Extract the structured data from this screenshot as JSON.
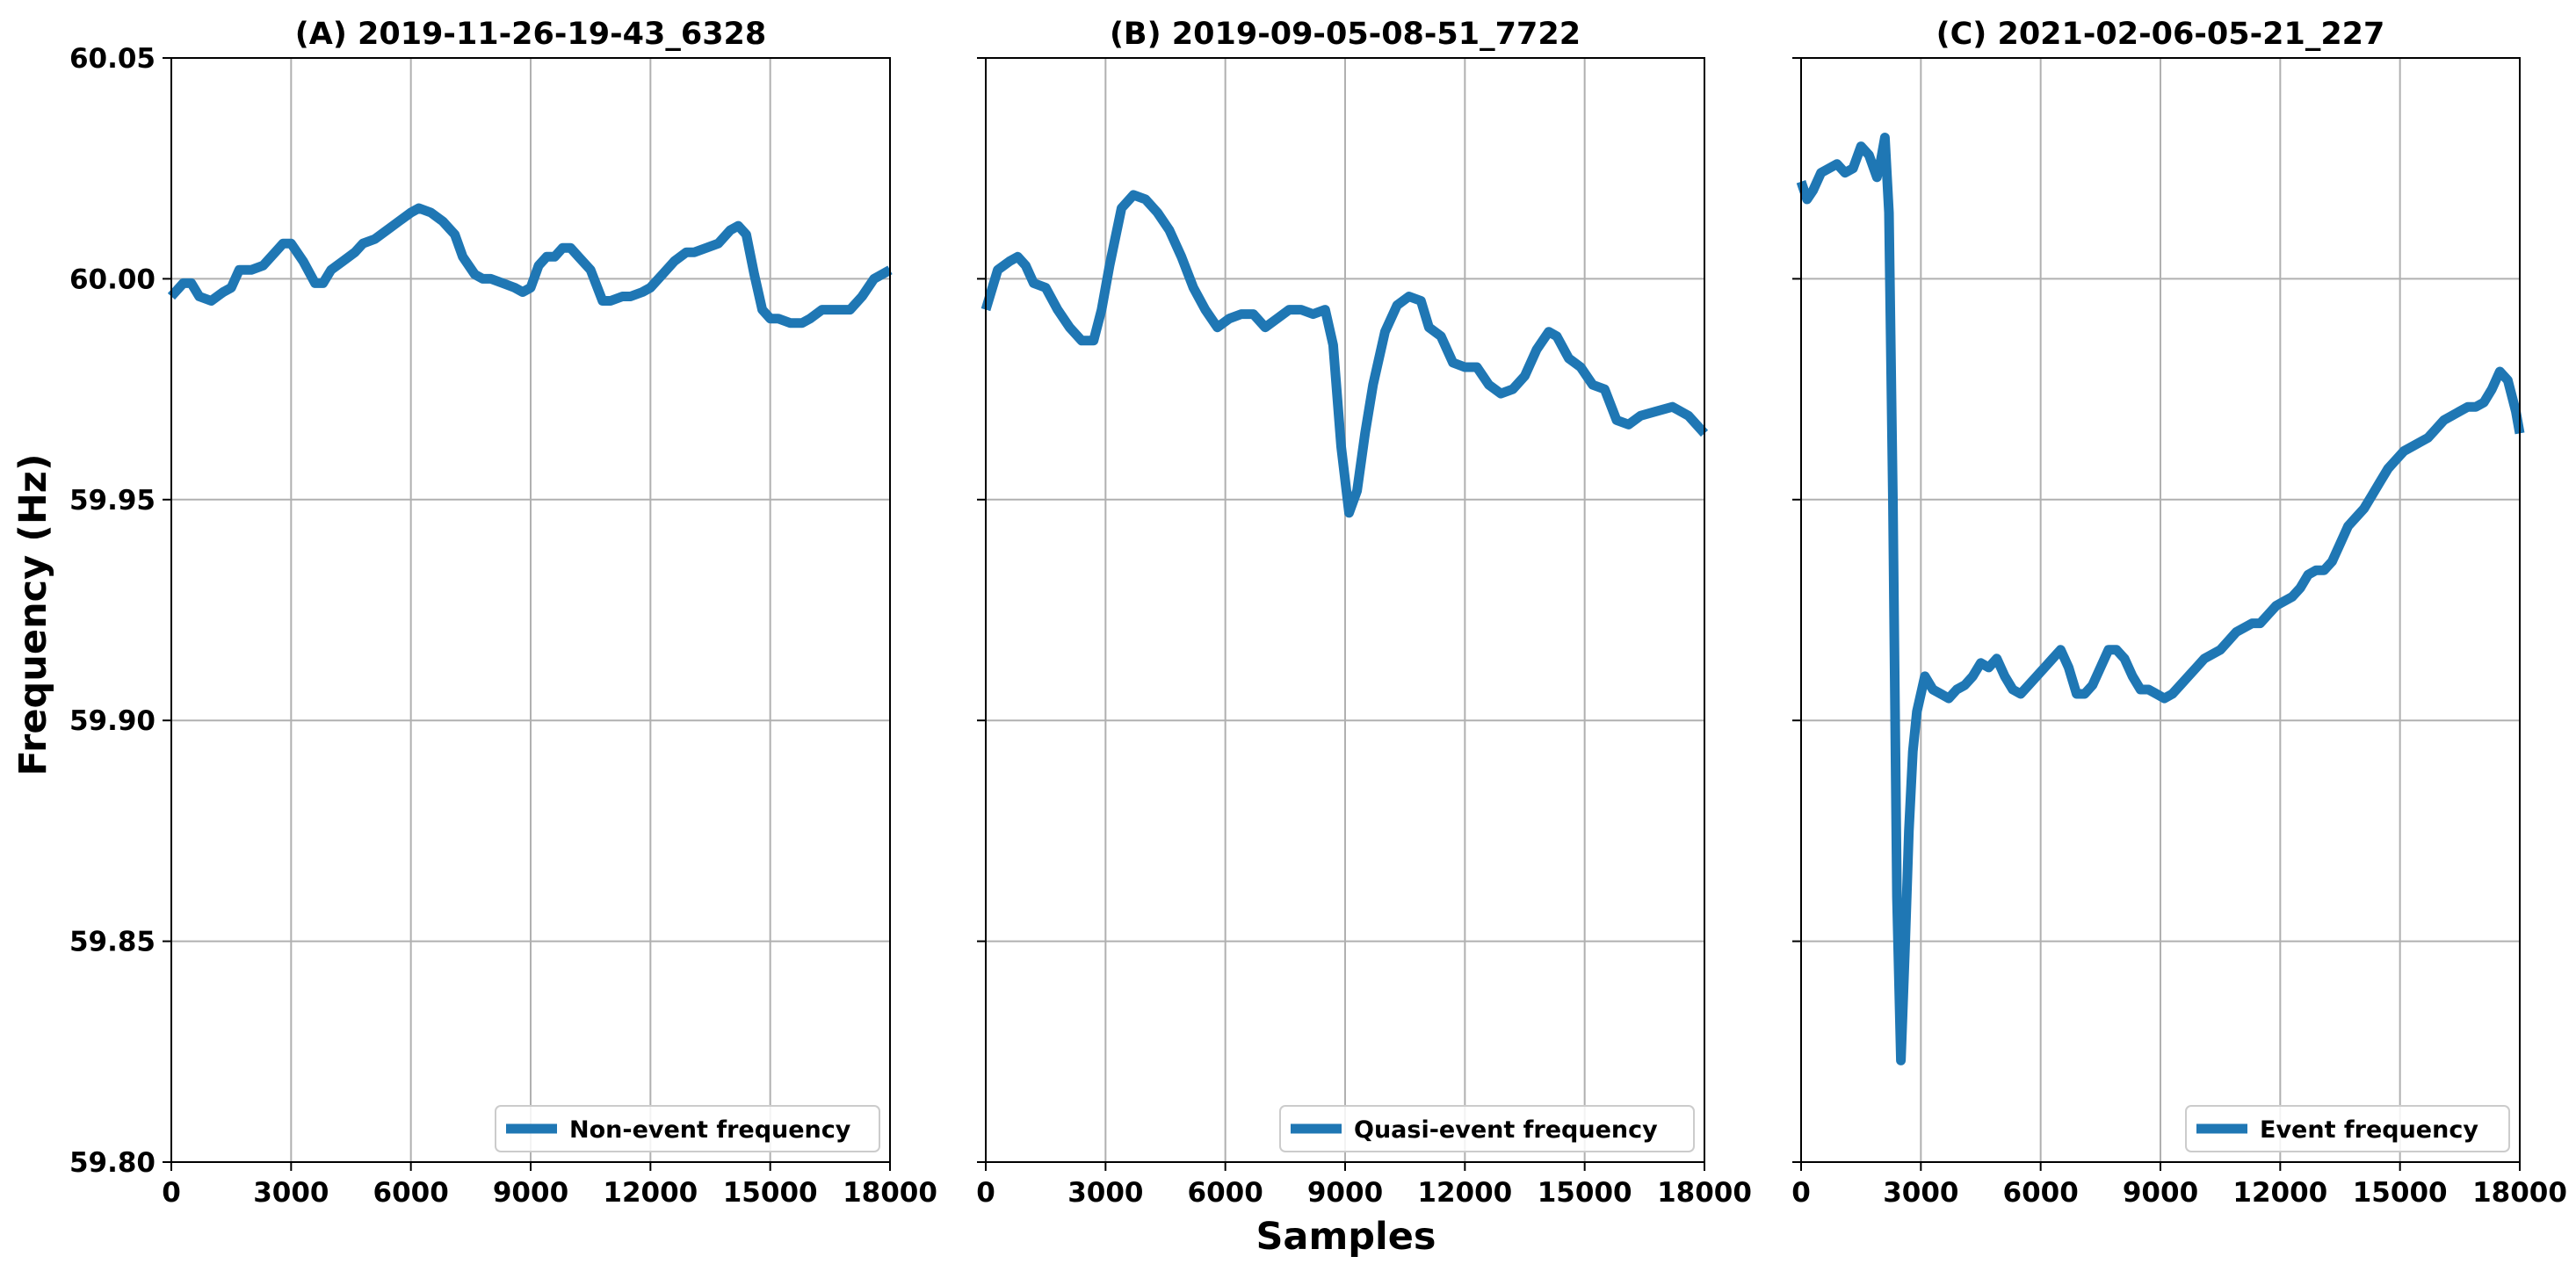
{
  "figure": {
    "ylabel": "Frequency (Hz)",
    "xlabel": "Samples"
  },
  "chart_data": [
    {
      "type": "line",
      "title": "(A) 2019-11-26-19-43_6328",
      "xlabel": "Samples",
      "ylabel": "Frequency (Hz)",
      "xlim": [
        0,
        18000
      ],
      "ylim": [
        59.8,
        60.05
      ],
      "xticks": [
        "0",
        "3000",
        "6000",
        "9000",
        "12000",
        "15000",
        "18000"
      ],
      "yticks": [
        "59.80",
        "59.85",
        "59.90",
        "59.95",
        "60.00",
        "60.05"
      ],
      "grid": true,
      "legend_position": "bottom-right",
      "color": "#1f77b4",
      "series": [
        {
          "name": "Non-event frequency",
          "x": [
            0,
            300,
            500,
            700,
            1000,
            1300,
            1500,
            1700,
            2000,
            2300,
            2600,
            2800,
            3000,
            3300,
            3600,
            3800,
            4000,
            4300,
            4600,
            4800,
            5100,
            5400,
            5700,
            6000,
            6200,
            6500,
            6800,
            7100,
            7300,
            7600,
            7800,
            8000,
            8300,
            8600,
            8800,
            9000,
            9200,
            9400,
            9600,
            9800,
            10000,
            10200,
            10500,
            10800,
            11000,
            11300,
            11500,
            11800,
            12000,
            12300,
            12600,
            12900,
            13100,
            13400,
            13700,
            14000,
            14200,
            14400,
            14600,
            14800,
            15000,
            15200,
            15500,
            15800,
            16000,
            16300,
            16600,
            16800,
            17000,
            17300,
            17600,
            18000
          ],
          "values": [
            59.996,
            59.999,
            59.999,
            59.996,
            59.995,
            59.997,
            59.998,
            60.002,
            60.002,
            60.003,
            60.006,
            60.008,
            60.008,
            60.004,
            59.999,
            59.999,
            60.002,
            60.004,
            60.006,
            60.008,
            60.009,
            60.011,
            60.013,
            60.015,
            60.016,
            60.015,
            60.013,
            60.01,
            60.005,
            60.001,
            60.0,
            60.0,
            59.999,
            59.998,
            59.997,
            59.998,
            60.003,
            60.005,
            60.005,
            60.007,
            60.007,
            60.005,
            60.002,
            59.995,
            59.995,
            59.996,
            59.996,
            59.997,
            59.998,
            60.001,
            60.004,
            60.006,
            60.006,
            60.007,
            60.008,
            60.011,
            60.012,
            60.01,
            60.001,
            59.993,
            59.991,
            59.991,
            59.99,
            59.99,
            59.991,
            59.993,
            59.993,
            59.993,
            59.993,
            59.996,
            60.0,
            60.002
          ]
        }
      ]
    },
    {
      "type": "line",
      "title": "(B) 2019-09-05-08-51_7722",
      "xlabel": "Samples",
      "ylabel": "Frequency (Hz)",
      "xlim": [
        0,
        18000
      ],
      "ylim": [
        59.8,
        60.05
      ],
      "xticks": [
        "0",
        "3000",
        "6000",
        "9000",
        "12000",
        "15000",
        "18000"
      ],
      "yticks": [
        "59.80",
        "59.85",
        "59.90",
        "59.95",
        "60.00",
        "60.05"
      ],
      "grid": true,
      "legend_position": "bottom-right",
      "color": "#1f77b4",
      "series": [
        {
          "name": "Quasi-event frequency",
          "x": [
            0,
            300,
            600,
            800,
            1000,
            1200,
            1500,
            1800,
            2100,
            2400,
            2700,
            2900,
            3100,
            3400,
            3700,
            4000,
            4300,
            4600,
            4900,
            5200,
            5500,
            5800,
            6100,
            6400,
            6700,
            7000,
            7300,
            7600,
            7900,
            8200,
            8500,
            8700,
            8900,
            9100,
            9300,
            9500,
            9700,
            10000,
            10300,
            10600,
            10900,
            11100,
            11400,
            11700,
            12000,
            12300,
            12600,
            12900,
            13200,
            13500,
            13800,
            14100,
            14300,
            14600,
            14900,
            15200,
            15500,
            15800,
            16100,
            16400,
            16800,
            17200,
            17600,
            18000
          ],
          "values": [
            59.993,
            60.002,
            60.004,
            60.005,
            60.003,
            59.999,
            59.998,
            59.993,
            59.989,
            59.986,
            59.986,
            59.993,
            60.003,
            60.016,
            60.019,
            60.018,
            60.015,
            60.011,
            60.005,
            59.998,
            59.993,
            59.989,
            59.991,
            59.992,
            59.992,
            59.989,
            59.991,
            59.993,
            59.993,
            59.992,
            59.993,
            59.985,
            59.962,
            59.947,
            59.952,
            59.965,
            59.976,
            59.988,
            59.994,
            59.996,
            59.995,
            59.989,
            59.987,
            59.981,
            59.98,
            59.98,
            59.976,
            59.974,
            59.975,
            59.978,
            59.984,
            59.988,
            59.987,
            59.982,
            59.98,
            59.976,
            59.975,
            59.968,
            59.967,
            59.969,
            59.97,
            59.971,
            59.969,
            59.965
          ]
        }
      ]
    },
    {
      "type": "line",
      "title": "(C) 2021-02-06-05-21_227",
      "xlabel": "Samples",
      "ylabel": "Frequency (Hz)",
      "xlim": [
        0,
        18000
      ],
      "ylim": [
        59.8,
        60.05
      ],
      "xticks": [
        "0",
        "3000",
        "6000",
        "9000",
        "12000",
        "15000",
        "18000"
      ],
      "yticks": [
        "59.80",
        "59.85",
        "59.90",
        "59.95",
        "60.00",
        "60.05"
      ],
      "grid": true,
      "legend_position": "bottom-right",
      "color": "#1f77b4",
      "series": [
        {
          "name": "Event frequency",
          "x": [
            0,
            150,
            300,
            500,
            700,
            900,
            1100,
            1300,
            1500,
            1700,
            1900,
            2000,
            2100,
            2200,
            2300,
            2400,
            2500,
            2600,
            2700,
            2800,
            2900,
            3100,
            3300,
            3500,
            3700,
            3900,
            4100,
            4300,
            4500,
            4700,
            4900,
            5100,
            5300,
            5500,
            5700,
            5900,
            6100,
            6300,
            6500,
            6700,
            6900,
            7100,
            7300,
            7500,
            7700,
            7900,
            8100,
            8300,
            8500,
            8700,
            8900,
            9100,
            9300,
            9500,
            9700,
            9900,
            10100,
            10300,
            10500,
            10700,
            10900,
            11100,
            11300,
            11500,
            11700,
            11900,
            12100,
            12300,
            12500,
            12700,
            12900,
            13100,
            13300,
            13500,
            13700,
            13900,
            14100,
            14300,
            14500,
            14700,
            14900,
            15100,
            15300,
            15500,
            15700,
            15900,
            16100,
            16300,
            16500,
            16700,
            16900,
            17100,
            17300,
            17500,
            17700,
            17900,
            18000
          ],
          "values": [
            60.022,
            60.018,
            60.02,
            60.024,
            60.025,
            60.026,
            60.024,
            60.025,
            60.03,
            60.028,
            60.023,
            60.027,
            60.032,
            60.015,
            59.95,
            59.86,
            59.823,
            59.848,
            59.875,
            59.893,
            59.902,
            59.91,
            59.907,
            59.906,
            59.905,
            59.907,
            59.908,
            59.91,
            59.913,
            59.912,
            59.914,
            59.91,
            59.907,
            59.906,
            59.908,
            59.91,
            59.912,
            59.914,
            59.916,
            59.912,
            59.906,
            59.906,
            59.908,
            59.912,
            59.916,
            59.916,
            59.914,
            59.91,
            59.907,
            59.907,
            59.906,
            59.905,
            59.906,
            59.908,
            59.91,
            59.912,
            59.914,
            59.915,
            59.916,
            59.918,
            59.92,
            59.921,
            59.922,
            59.922,
            59.924,
            59.926,
            59.927,
            59.928,
            59.93,
            59.933,
            59.934,
            59.934,
            59.936,
            59.94,
            59.944,
            59.946,
            59.948,
            59.951,
            59.954,
            59.957,
            59.959,
            59.961,
            59.962,
            59.963,
            59.964,
            59.966,
            59.968,
            59.969,
            59.97,
            59.971,
            59.971,
            59.972,
            59.975,
            59.979,
            59.977,
            59.97,
            59.965
          ]
        }
      ]
    }
  ]
}
